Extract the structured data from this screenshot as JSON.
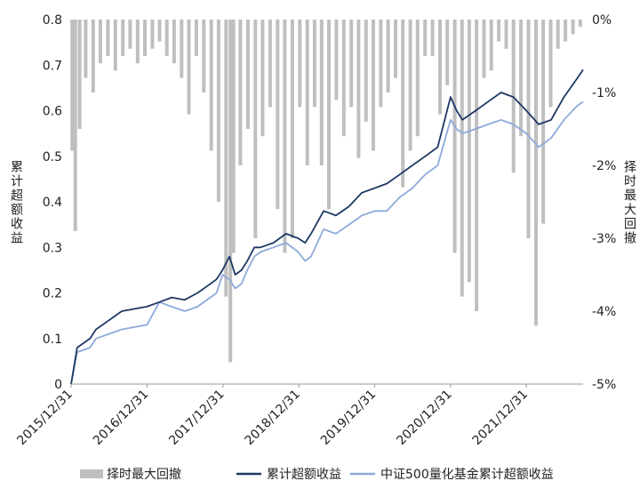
{
  "chart_data": {
    "type": "line",
    "title": "",
    "xlabel": "",
    "ylabel": "累计超额收益",
    "y2label": "择时最大回撤",
    "ylim": [
      0,
      0.8
    ],
    "y2lim": [
      -5,
      0
    ],
    "yticks": [
      "0",
      "0.1",
      "0.2",
      "0.3",
      "0.4",
      "0.5",
      "0.6",
      "0.7",
      "0.8"
    ],
    "y2ticks": [
      "0%",
      "-1%",
      "-2%",
      "-3%",
      "-4%",
      "-5%"
    ],
    "xticks": [
      "2015/12/31",
      "2016/12/31",
      "2017/12/31",
      "2018/12/31",
      "2019/12/31",
      "2020/12/31",
      "2021/12/31"
    ],
    "x_range": [
      "2015/12/31",
      "2022/09/30"
    ],
    "grid": false,
    "legend_position": "bottom",
    "colors": {
      "drawdown": "#bfbfbf",
      "excess": "#1f3864",
      "fund": "#8eaadb"
    },
    "series": [
      {
        "name": "累计超额收益",
        "type": "line",
        "axis": "left",
        "x": [
          "2015/12/31",
          "2016/01/29",
          "2016/02/29",
          "2016/03/31",
          "2016/04/29",
          "2016/06/30",
          "2016/08/31",
          "2016/10/31",
          "2016/12/30",
          "2017/02/28",
          "2017/04/28",
          "2017/06/30",
          "2017/08/31",
          "2017/10/31",
          "2017/11/30",
          "2017/12/29",
          "2018/01/31",
          "2018/02/28",
          "2018/03/30",
          "2018/04/27",
          "2018/05/31",
          "2018/06/29",
          "2018/08/31",
          "2018/10/31",
          "2018/12/28",
          "2019/01/31",
          "2019/02/28",
          "2019/04/30",
          "2019/06/28",
          "2019/08/30",
          "2019/10/31",
          "2019/12/31",
          "2020/02/28",
          "2020/04/30",
          "2020/06/30",
          "2020/08/31",
          "2020/10/30",
          "2020/12/31",
          "2021/01/29",
          "2021/02/26",
          "2021/04/30",
          "2021/06/30",
          "2021/08/31",
          "2021/10/29",
          "2021/12/31",
          "2022/02/28",
          "2022/04/29",
          "2022/06/30",
          "2022/08/31",
          "2022/09/30"
        ],
        "y": [
          0,
          0.08,
          0.09,
          0.1,
          0.12,
          0.14,
          0.16,
          0.165,
          0.17,
          0.18,
          0.19,
          0.185,
          0.2,
          0.22,
          0.23,
          0.25,
          0.28,
          0.24,
          0.25,
          0.27,
          0.3,
          0.3,
          0.31,
          0.33,
          0.32,
          0.31,
          0.33,
          0.38,
          0.37,
          0.39,
          0.42,
          0.43,
          0.44,
          0.46,
          0.48,
          0.5,
          0.52,
          0.63,
          0.6,
          0.58,
          0.6,
          0.62,
          0.64,
          0.63,
          0.6,
          0.57,
          0.58,
          0.63,
          0.67,
          0.69
        ]
      },
      {
        "name": "中证500量化基金累计超额收益",
        "type": "line",
        "axis": "left",
        "x": [
          "2015/12/31",
          "2016/01/29",
          "2016/02/29",
          "2016/03/31",
          "2016/04/29",
          "2016/06/30",
          "2016/08/31",
          "2016/10/31",
          "2016/12/30",
          "2017/02/28",
          "2017/04/28",
          "2017/06/30",
          "2017/08/31",
          "2017/10/31",
          "2017/11/30",
          "2017/12/29",
          "2018/01/31",
          "2018/02/28",
          "2018/03/30",
          "2018/04/27",
          "2018/05/31",
          "2018/06/29",
          "2018/08/31",
          "2018/10/31",
          "2018/12/28",
          "2019/01/31",
          "2019/02/28",
          "2019/04/30",
          "2019/06/28",
          "2019/08/30",
          "2019/10/31",
          "2019/12/31",
          "2020/02/28",
          "2020/04/30",
          "2020/06/30",
          "2020/08/31",
          "2020/10/30",
          "2020/12/31",
          "2021/01/29",
          "2021/02/26",
          "2021/04/30",
          "2021/06/30",
          "2021/08/31",
          "2021/10/29",
          "2021/12/31",
          "2022/02/28",
          "2022/04/29",
          "2022/06/30",
          "2022/08/31",
          "2022/09/30"
        ],
        "y": [
          0,
          0.07,
          0.075,
          0.08,
          0.1,
          0.11,
          0.12,
          0.125,
          0.13,
          0.18,
          0.17,
          0.16,
          0.17,
          0.19,
          0.2,
          0.24,
          0.23,
          0.21,
          0.22,
          0.25,
          0.28,
          0.29,
          0.3,
          0.31,
          0.29,
          0.27,
          0.28,
          0.34,
          0.33,
          0.35,
          0.37,
          0.38,
          0.38,
          0.41,
          0.43,
          0.46,
          0.48,
          0.58,
          0.56,
          0.55,
          0.56,
          0.57,
          0.58,
          0.57,
          0.55,
          0.52,
          0.54,
          0.58,
          0.61,
          0.62
        ]
      },
      {
        "name": "择时最大回撤",
        "type": "bar",
        "axis": "right",
        "x": [
          "2016/01/05",
          "2016/01/20",
          "2016/02/10",
          "2016/03/10",
          "2016/04/15",
          "2016/05/20",
          "2016/06/25",
          "2016/07/31",
          "2016/09/05",
          "2016/10/10",
          "2016/11/15",
          "2016/12/20",
          "2017/01/25",
          "2017/03/01",
          "2017/04/05",
          "2017/05/10",
          "2017/06/15",
          "2017/07/20",
          "2017/08/25",
          "2017/09/30",
          "2017/11/05",
          "2017/12/10",
          "2018/01/15",
          "2018/02/05",
          "2018/02/20",
          "2018/03/25",
          "2018/04/30",
          "2018/06/05",
          "2018/07/10",
          "2018/08/15",
          "2018/09/20",
          "2018/10/25",
          "2018/11/30",
          "2019/01/05",
          "2019/02/10",
          "2019/03/17",
          "2019/04/20",
          "2019/05/25",
          "2019/06/30",
          "2019/08/05",
          "2019/09/10",
          "2019/10/15",
          "2019/11/20",
          "2019/12/25",
          "2020/01/30",
          "2020/03/05",
          "2020/04/10",
          "2020/05/15",
          "2020/06/20",
          "2020/07/25",
          "2020/08/30",
          "2020/10/05",
          "2020/11/10",
          "2020/12/15",
          "2021/01/20",
          "2021/02/24",
          "2021/03/31",
          "2021/05/05",
          "2021/06/10",
          "2021/07/15",
          "2021/08/20",
          "2021/09/25",
          "2021/10/30",
          "2021/12/05",
          "2022/01/10",
          "2022/02/15",
          "2022/03/22",
          "2022/04/27",
          "2022/06/01",
          "2022/07/07",
          "2022/08/12",
          "2022/09/16"
        ],
        "y": [
          -1.8,
          -2.9,
          -1.5,
          -0.8,
          -1.0,
          -0.6,
          -0.5,
          -0.7,
          -0.5,
          -0.4,
          -0.6,
          -0.5,
          -0.4,
          -0.3,
          -0.5,
          -0.6,
          -0.8,
          -1.3,
          -0.5,
          -1.0,
          -1.8,
          -2.5,
          -3.8,
          -4.7,
          -3.2,
          -2.0,
          -1.5,
          -3.0,
          -1.6,
          -1.2,
          -2.6,
          -3.2,
          -3.0,
          -1.2,
          -2.0,
          -1.2,
          -2.0,
          -2.6,
          -1.1,
          -1.6,
          -1.2,
          -1.9,
          -1.4,
          -1.8,
          -1.2,
          -1.0,
          -0.8,
          -2.3,
          -1.8,
          -1.6,
          -0.5,
          -0.5,
          -1.3,
          -0.9,
          -3.2,
          -3.8,
          -3.6,
          -4.0,
          -0.8,
          -0.7,
          -0.3,
          -0.4,
          -2.1,
          -1.6,
          -3.0,
          -4.2,
          -2.8,
          -1.2,
          -0.4,
          -0.3,
          -0.2,
          -0.1
        ]
      }
    ]
  }
}
